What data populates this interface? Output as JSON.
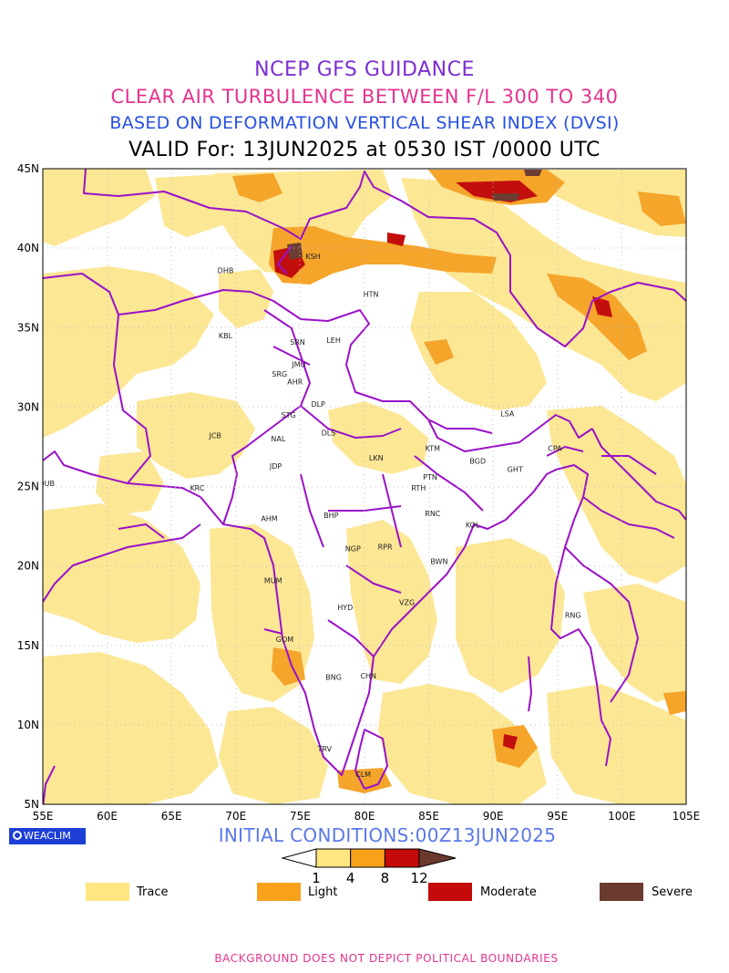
{
  "header": {
    "line1": "NCEP GFS GUIDANCE",
    "line2": "CLEAR AIR TURBULENCE BETWEEN F/L 300 TO 340",
    "line3": "BASED ON DEFORMATION VERTICAL SHEAR INDEX (DVSI)",
    "line4": "VALID For: 13JUN2025 at 0530 IST /0000 UTC"
  },
  "axes": {
    "lat_labels": [
      "45N",
      "40N",
      "35N",
      "30N",
      "25N",
      "20N",
      "15N",
      "10N",
      "5N"
    ],
    "lon_labels": [
      "55E",
      "60E",
      "65E",
      "70E",
      "75E",
      "80E",
      "85E",
      "90E",
      "95E",
      "100E",
      "105E"
    ],
    "lat_range": [
      5,
      45
    ],
    "lon_range": [
      55,
      105
    ]
  },
  "cities": [
    {
      "code": "DHB",
      "lon": 69.2,
      "lat": 38.6
    },
    {
      "code": "KSH",
      "lon": 76.0,
      "lat": 39.5
    },
    {
      "code": "HTN",
      "lon": 80.5,
      "lat": 37.1
    },
    {
      "code": "KBL",
      "lon": 69.2,
      "lat": 34.5
    },
    {
      "code": "SRN",
      "lon": 74.8,
      "lat": 34.1
    },
    {
      "code": "LEH",
      "lon": 77.6,
      "lat": 34.2
    },
    {
      "code": "JMU",
      "lon": 74.9,
      "lat": 32.7
    },
    {
      "code": "SRG",
      "lon": 73.4,
      "lat": 32.1
    },
    {
      "code": "AHR",
      "lon": 74.6,
      "lat": 31.6
    },
    {
      "code": "DLP",
      "lon": 76.4,
      "lat": 30.2
    },
    {
      "code": "LSA",
      "lon": 91.1,
      "lat": 29.6
    },
    {
      "code": "JCB",
      "lon": 68.4,
      "lat": 28.2
    },
    {
      "code": "STG",
      "lon": 74.1,
      "lat": 29.5
    },
    {
      "code": "NAL",
      "lon": 73.3,
      "lat": 28.0
    },
    {
      "code": "DLS",
      "lon": 77.2,
      "lat": 28.4
    },
    {
      "code": "KTM",
      "lon": 85.3,
      "lat": 27.4
    },
    {
      "code": "BGD",
      "lon": 88.8,
      "lat": 26.6
    },
    {
      "code": "CPA",
      "lon": 94.8,
      "lat": 27.4
    },
    {
      "code": "JDP",
      "lon": 73.1,
      "lat": 26.3
    },
    {
      "code": "LKN",
      "lon": 80.9,
      "lat": 26.8
    },
    {
      "code": "GHT",
      "lon": 91.7,
      "lat": 26.1
    },
    {
      "code": "PTN",
      "lon": 85.1,
      "lat": 25.6
    },
    {
      "code": "DUB",
      "lon": 55.3,
      "lat": 25.2
    },
    {
      "code": "KRC",
      "lon": 67.0,
      "lat": 24.9
    },
    {
      "code": "RTH",
      "lon": 84.2,
      "lat": 24.9
    },
    {
      "code": "AHM",
      "lon": 72.6,
      "lat": 23.0
    },
    {
      "code": "BHP",
      "lon": 77.4,
      "lat": 23.2
    },
    {
      "code": "RNC",
      "lon": 85.3,
      "lat": 23.3
    },
    {
      "code": "KOL",
      "lon": 88.4,
      "lat": 22.6
    },
    {
      "code": "NGP",
      "lon": 79.1,
      "lat": 21.1
    },
    {
      "code": "RPR",
      "lon": 81.6,
      "lat": 21.2
    },
    {
      "code": "BWN",
      "lon": 85.8,
      "lat": 20.3
    },
    {
      "code": "MUM",
      "lon": 72.9,
      "lat": 19.1
    },
    {
      "code": "HYD",
      "lon": 78.5,
      "lat": 17.4
    },
    {
      "code": "VZG",
      "lon": 83.3,
      "lat": 17.7
    },
    {
      "code": "RNG",
      "lon": 96.2,
      "lat": 16.9
    },
    {
      "code": "GOM",
      "lon": 73.8,
      "lat": 15.4
    },
    {
      "code": "BNG",
      "lon": 77.6,
      "lat": 13.0
    },
    {
      "code": "CHN",
      "lon": 80.3,
      "lat": 13.1
    },
    {
      "code": "TRV",
      "lon": 76.9,
      "lat": 8.5
    },
    {
      "code": "CLM",
      "lon": 79.9,
      "lat": 6.9
    }
  ],
  "colorbar": {
    "ticks": [
      "1",
      "4",
      "8",
      "12"
    ],
    "colors": [
      "#ffe680",
      "#f8a21c",
      "#c40a0a",
      "#6b3a2e"
    ]
  },
  "legend": [
    {
      "label": "Trace",
      "color": "#ffe680"
    },
    {
      "label": "Light",
      "color": "#f8a21c"
    },
    {
      "label": "Moderate",
      "color": "#c40a0a"
    },
    {
      "label": "Severe",
      "color": "#6b3a2e"
    }
  ],
  "colors": {
    "boundary": "#9a11c8",
    "trace": "#fce795",
    "light": "#f5a52a",
    "moderate": "#c30e0e",
    "severe": "#6b3d33"
  },
  "brand": "WEACLIM",
  "initial_conditions": "INITIAL CONDITIONS:00Z13JUN2025",
  "footer": "BACKGROUND DOES NOT DEPICT POLITICAL BOUNDARIES"
}
